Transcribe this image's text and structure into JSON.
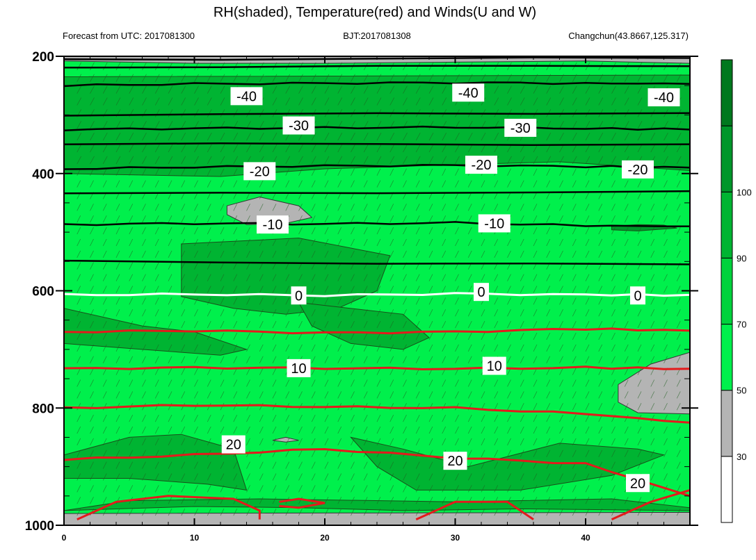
{
  "chart_data": {
    "type": "heatmap",
    "title": "RH(shaded), Temperature(red) and Winds(U and W)",
    "subtitle_left": "Forecast from UTC: 2017081300",
    "subtitle_center": "BJT:2017081308",
    "subtitle_right": "Changchun(43.8667,125.317)",
    "xlabel": "",
    "ylabel": "",
    "xlim": [
      0,
      48
    ],
    "ylim": [
      1000,
      200
    ],
    "y_axis_inverted": true,
    "x_ticks": [
      0,
      10,
      20,
      30,
      40
    ],
    "y_ticks": [
      200,
      400,
      600,
      800,
      1000
    ],
    "colorbar": {
      "ticks": [
        30,
        50,
        70,
        90,
        100
      ],
      "colors": [
        "#ffffff",
        "#b4b4b4",
        "#00f04c",
        "#00d23c",
        "#00b432",
        "#00962a",
        "#00781e"
      ],
      "bounds": [
        10,
        30,
        50,
        70,
        90,
        100,
        110
      ]
    },
    "rh_regions": [
      {
        "level": "dry",
        "color": "#b4b4b4",
        "note": "near 200 hPa"
      },
      {
        "level": "dry",
        "color": "#b4b4b4",
        "note": "near 460 hPa, x 13-19"
      },
      {
        "level": "dry",
        "color": "#b4b4b4",
        "note": "near 700-800 hPa, x 42-48"
      },
      {
        "level": "dry",
        "color": "#b4b4b4",
        "note": "near 975 hPa"
      },
      {
        "level": "moist",
        "color": "#00b432",
        "note": "patches in mid levels and low levels"
      },
      {
        "level": "saturated",
        "color": "#00962a",
        "note": "near 490 hPa, x 42-46"
      }
    ],
    "temperature_contours": [
      {
        "value": -40,
        "color": "#000000",
        "points": [
          [
            0,
            250
          ],
          [
            10,
            247
          ],
          [
            20,
            246
          ],
          [
            30,
            245
          ],
          [
            40,
            246
          ],
          [
            48,
            247
          ]
        ]
      },
      {
        "value": -30,
        "color": "#000000",
        "points": [
          [
            0,
            325
          ],
          [
            10,
            323
          ],
          [
            20,
            322
          ],
          [
            30,
            321
          ],
          [
            40,
            323
          ],
          [
            48,
            325
          ]
        ]
      },
      {
        "value": -20,
        "color": "#000000",
        "points": [
          [
            0,
            392
          ],
          [
            10,
            389
          ],
          [
            20,
            387
          ],
          [
            30,
            386
          ],
          [
            40,
            388
          ],
          [
            48,
            390
          ]
        ]
      },
      {
        "value": -10,
        "color": "#000000",
        "points": [
          [
            0,
            487
          ],
          [
            10,
            485
          ],
          [
            20,
            486
          ],
          [
            30,
            484
          ],
          [
            40,
            489
          ],
          [
            48,
            490
          ]
        ]
      },
      {
        "value": 0,
        "color": "#ffffff",
        "points": [
          [
            0,
            607
          ],
          [
            10,
            606
          ],
          [
            20,
            608
          ],
          [
            30,
            605
          ],
          [
            40,
            607
          ],
          [
            48,
            607
          ]
        ]
      },
      {
        "value": 10,
        "color": "#e41a1c",
        "points": [
          [
            0,
            733
          ],
          [
            10,
            731
          ],
          [
            20,
            732
          ],
          [
            30,
            733
          ],
          [
            40,
            731
          ],
          [
            48,
            733
          ]
        ]
      },
      {
        "value": 20,
        "color": "#e41a1c",
        "points": [
          [
            0,
            888
          ],
          [
            10,
            880
          ],
          [
            20,
            870
          ],
          [
            30,
            885
          ],
          [
            40,
            895
          ],
          [
            48,
            950
          ]
        ]
      }
    ],
    "black_extra_contours": [
      {
        "points": [
          [
            0,
            205
          ],
          [
            48,
            203
          ]
        ]
      },
      {
        "points": [
          [
            0,
            218
          ],
          [
            48,
            217
          ]
        ]
      },
      {
        "points": [
          [
            0,
            300
          ],
          [
            48,
            297
          ]
        ]
      },
      {
        "points": [
          [
            0,
            350
          ],
          [
            48,
            350
          ]
        ]
      },
      {
        "points": [
          [
            0,
            435
          ],
          [
            48,
            430
          ]
        ]
      },
      {
        "points": [
          [
            0,
            550
          ],
          [
            48,
            555
          ]
        ]
      }
    ],
    "red_extra_contours": [
      {
        "points": [
          [
            0,
            670
          ],
          [
            10,
            668
          ],
          [
            20,
            672
          ],
          [
            30,
            670
          ],
          [
            40,
            665
          ],
          [
            48,
            668
          ]
        ]
      },
      {
        "points": [
          [
            0,
            800
          ],
          [
            10,
            795
          ],
          [
            20,
            798
          ],
          [
            30,
            800
          ],
          [
            40,
            810
          ],
          [
            48,
            825
          ]
        ]
      }
    ],
    "contour_labels": [
      {
        "text": "-40",
        "x": 14,
        "y": 268
      },
      {
        "text": "-40",
        "x": 31,
        "y": 262
      },
      {
        "text": "-40",
        "x": 46,
        "y": 270
      },
      {
        "text": "-30",
        "x": 18,
        "y": 318
      },
      {
        "text": "-30",
        "x": 35,
        "y": 322
      },
      {
        "text": "-20",
        "x": 15,
        "y": 396
      },
      {
        "text": "-20",
        "x": 32,
        "y": 385
      },
      {
        "text": "-20",
        "x": 44,
        "y": 393
      },
      {
        "text": "-10",
        "x": 16,
        "y": 487
      },
      {
        "text": "-10",
        "x": 33,
        "y": 485
      },
      {
        "text": "0",
        "x": 18,
        "y": 608
      },
      {
        "text": "0",
        "x": 32,
        "y": 602
      },
      {
        "text": "0",
        "x": 44,
        "y": 608
      },
      {
        "text": "10",
        "x": 18,
        "y": 732
      },
      {
        "text": "10",
        "x": 33,
        "y": 728
      },
      {
        "text": "20",
        "x": 13,
        "y": 862
      },
      {
        "text": "20",
        "x": 30,
        "y": 890
      },
      {
        "text": "20",
        "x": 44,
        "y": 928
      }
    ]
  }
}
